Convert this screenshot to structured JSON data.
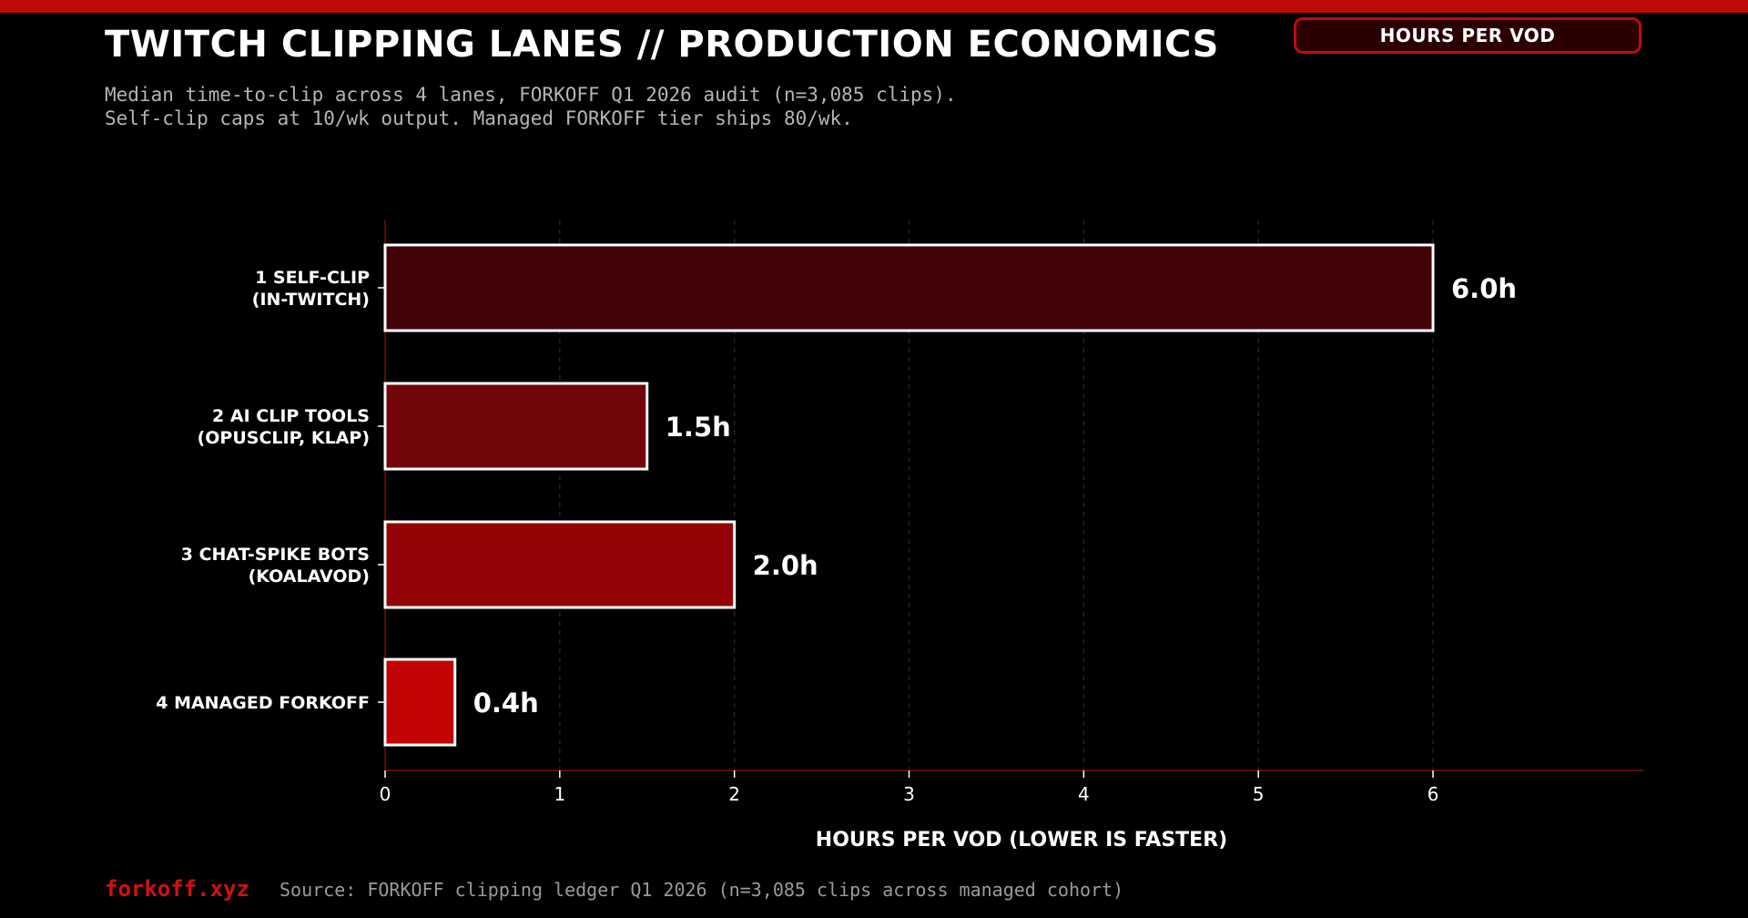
{
  "header": {
    "title": "TWITCH CLIPPING LANES // PRODUCTION ECONOMICS",
    "subtitle_line1": "Median time-to-clip across 4 lanes, FORKOFF Q1 2026 audit (n=3,085 clips).",
    "subtitle_line2": "Self-clip caps at 10/wk output. Managed FORKOFF tier ships 80/wk.",
    "badge": "HOURS PER VOD"
  },
  "footer": {
    "brand": "forkoff.xyz",
    "source": "Source: FORKOFF clipping ledger Q1 2026 (n=3,085 clips across managed cohort)"
  },
  "chart_data": {
    "type": "bar",
    "orientation": "horizontal",
    "categories": [
      [
        "1 SELF-CLIP",
        "(IN-TWITCH)"
      ],
      [
        "2 AI CLIP TOOLS",
        "(OPUSCLIP, KLAP)"
      ],
      [
        "3 CHAT-SPIKE BOTS",
        "(KOALAVOD)"
      ],
      [
        "4 MANAGED FORKOFF"
      ]
    ],
    "values": [
      6.0,
      1.5,
      2.0,
      0.4
    ],
    "data_labels": [
      "6.0h",
      "1.5h",
      "2.0h",
      "0.4h"
    ],
    "bar_colors": [
      "#420309",
      "#72050a",
      "#960306",
      "#c20404"
    ],
    "xlabel": "HOURS PER VOD (LOWER IS FASTER)",
    "ylabel": "",
    "xlim": [
      0,
      7.2
    ],
    "xticks": [
      0,
      1,
      2,
      3,
      4,
      5,
      6
    ],
    "grid": "vertical dashed",
    "legend": "none"
  }
}
